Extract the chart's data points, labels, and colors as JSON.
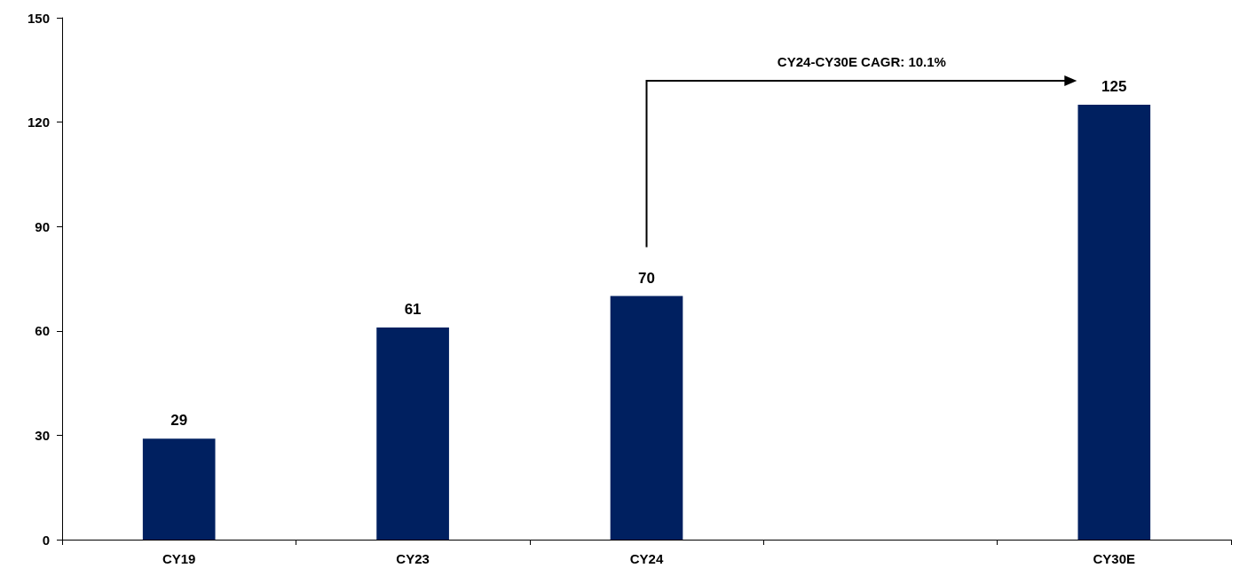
{
  "chart_data": {
    "type": "bar",
    "categories": [
      "CY19",
      "CY23",
      "CY24",
      null,
      "CY30E"
    ],
    "values": [
      29,
      61,
      70,
      null,
      125
    ],
    "color": "#002060",
    "ylim": [
      0,
      150
    ],
    "yticks": [
      0,
      30,
      60,
      90,
      120,
      150
    ],
    "grid": false,
    "data_labels": true,
    "annotations": [
      "CY24-CY30E CAGR: 10.1%"
    ]
  }
}
